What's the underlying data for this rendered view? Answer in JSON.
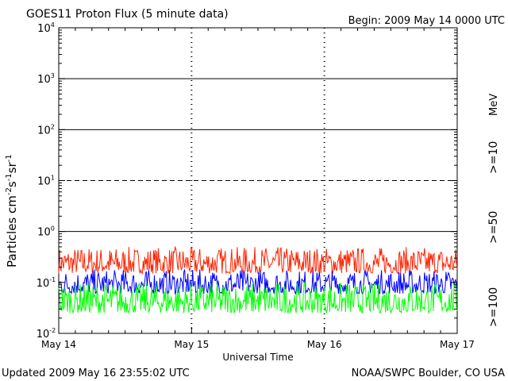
{
  "chart_data": {
    "type": "line",
    "title": "GOES11 Proton Flux (5 minute data)",
    "begin_label": "Begin: 2009 May 14 0000 UTC",
    "xlabel": "Universal Time",
    "ylabel_main": "Particles cm",
    "ylabel_sup1": "-2",
    "ylabel_mid1": "s",
    "ylabel_sup2": "-1",
    "ylabel_mid2": "sr",
    "ylabel_sup3": "-1",
    "yscale": "log",
    "ylim": [
      0.01,
      10000
    ],
    "xlim": [
      "2009-05-14 00:00",
      "2009-05-17 00:00"
    ],
    "x_ticks": [
      "May 14",
      "May 15",
      "May 16",
      "May 17"
    ],
    "y_ticks": [
      {
        "base": "10",
        "exp": "-2"
      },
      {
        "base": "10",
        "exp": "-1"
      },
      {
        "base": "10",
        "exp": "0"
      },
      {
        "base": "10",
        "exp": "1"
      },
      {
        "base": "10",
        "exp": "2"
      },
      {
        "base": "10",
        "exp": "3"
      },
      {
        "base": "10",
        "exp": "4"
      }
    ],
    "unit_label": "MeV",
    "series": [
      {
        "name": ">=10",
        "color": "#ff2200",
        "typical_flux_range": [
          0.15,
          0.5
        ]
      },
      {
        "name": ">=50",
        "color": "#0000ff",
        "typical_flux_range": [
          0.06,
          0.18
        ]
      },
      {
        "name": ">=100",
        "color": "#00ff00",
        "typical_flux_range": [
          0.025,
          0.1
        ]
      }
    ],
    "threshold_lines": [
      {
        "value": 10,
        "style": "dashed"
      },
      {
        "value": 100,
        "style": "solid"
      },
      {
        "value": 1000,
        "style": "solid"
      },
      {
        "value": 1,
        "style": "solid"
      }
    ]
  },
  "footer": {
    "updated": "Updated 2009 May 16 23:55:02 UTC",
    "source": "NOAA/SWPC Boulder, CO USA"
  }
}
